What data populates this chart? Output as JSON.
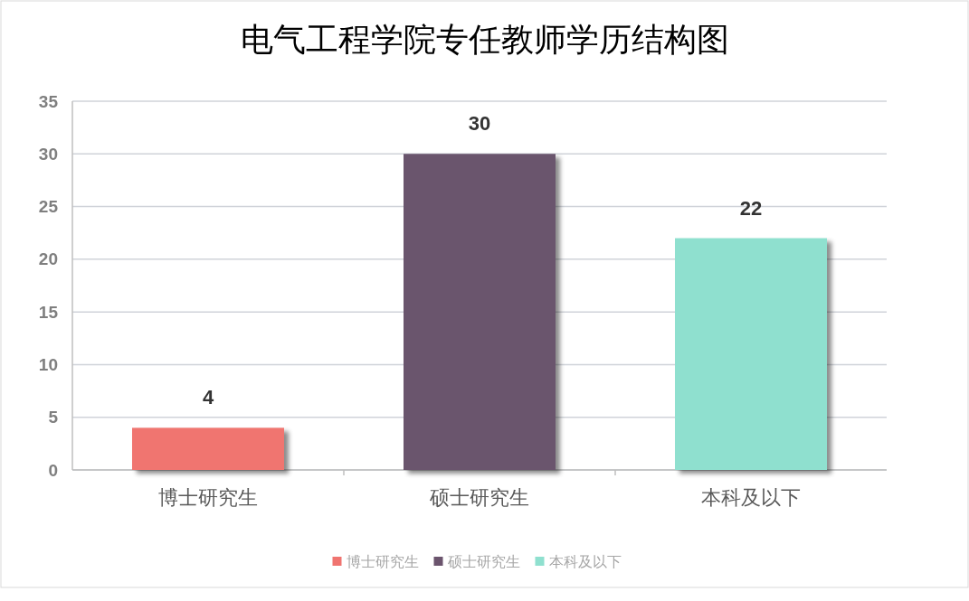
{
  "chart_data": {
    "type": "bar",
    "title": "电气工程学院专任教师学历结构图",
    "categories": [
      "博士研究生",
      "硕士研究生",
      "本科及以下"
    ],
    "series": [
      {
        "name": "博士研究生",
        "color": "#f07470",
        "values": [
          4,
          null,
          null
        ]
      },
      {
        "name": "硕士研究生",
        "color": "#6b546d",
        "values": [
          null,
          30,
          null
        ]
      },
      {
        "name": "本科及以下",
        "color": "#8fe0cf",
        "values": [
          null,
          null,
          22
        ]
      }
    ],
    "stacked": true,
    "ylim": [
      0,
      35
    ],
    "yticks": [
      0,
      5,
      10,
      15,
      20,
      25,
      30,
      35
    ],
    "grid": "y",
    "data_labels": true,
    "legend": "bottom"
  }
}
